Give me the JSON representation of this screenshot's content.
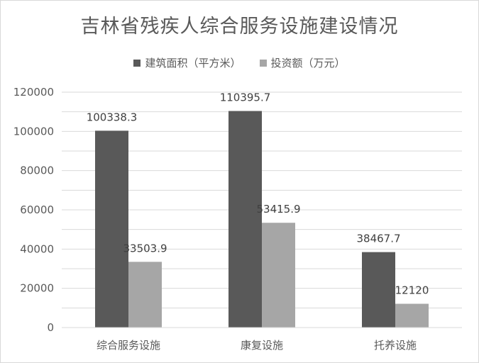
{
  "chart_data": {
    "type": "bar",
    "title": "吉林省残疾人综合服务设施建设情况",
    "categories": [
      "综合服务设施",
      "康复设施",
      "托养设施"
    ],
    "series": [
      {
        "name": "建筑面积（平方米）",
        "values": [
          100338.3,
          110395.7,
          38467.7
        ],
        "labels": [
          "100338.3",
          "110395.7",
          "38467.7"
        ],
        "color": "#595959"
      },
      {
        "name": "投资额（万元）",
        "values": [
          33503.9,
          53415.9,
          12120
        ],
        "labels": [
          "33503.9",
          "53415.9",
          "12120"
        ],
        "color": "#a6a6a6"
      }
    ],
    "yticks": [
      "0",
      "20000",
      "40000",
      "60000",
      "80000",
      "100000",
      "120000"
    ],
    "ylim": [
      0,
      120000
    ],
    "grid": true,
    "legend": "top-center",
    "gridColor": "#d9d9d9"
  }
}
